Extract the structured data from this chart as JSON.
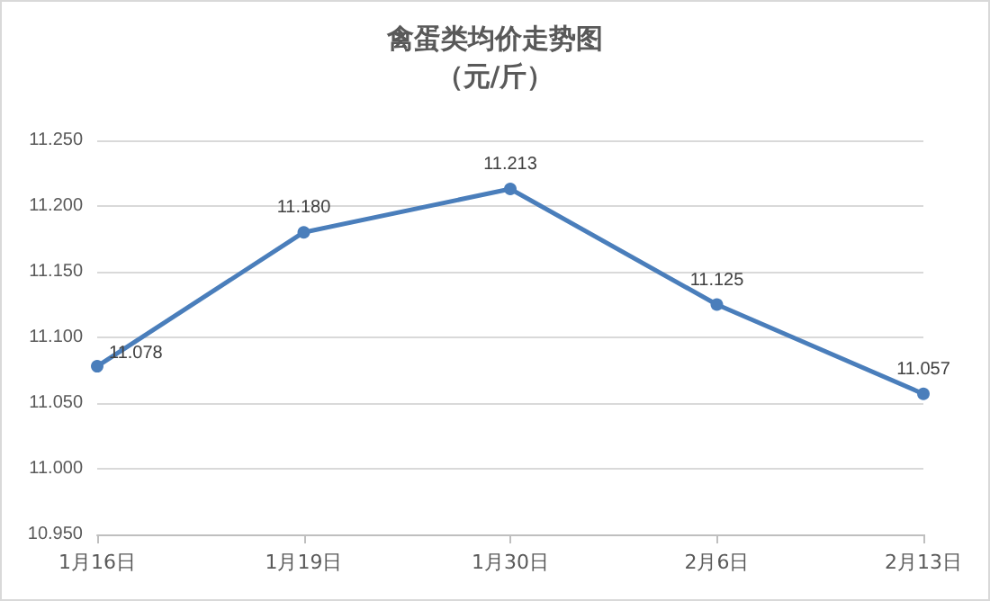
{
  "chart_data": {
    "type": "line",
    "title": "禽蛋类均价走势图",
    "subtitle": "（元/斤）",
    "categories": [
      "1月16日",
      "1月19日",
      "1月30日",
      "2月6日",
      "2月13日"
    ],
    "series": [
      {
        "color": "#4a7ebb",
        "values": [
          11.078,
          11.18,
          11.213,
          11.125,
          11.057
        ],
        "value_labels": [
          "11.078",
          "11.180",
          "11.213",
          "11.125",
          "11.057"
        ]
      }
    ],
    "ylim": [
      10.95,
      11.25
    ],
    "yticks": [
      {
        "value": 10.95,
        "label": "10.950"
      },
      {
        "value": 11.0,
        "label": "11.000"
      },
      {
        "value": 11.05,
        "label": "11.050"
      },
      {
        "value": 11.1,
        "label": "11.100"
      },
      {
        "value": 11.15,
        "label": "11.150"
      },
      {
        "value": 11.2,
        "label": "11.200"
      },
      {
        "value": 11.25,
        "label": "11.250"
      }
    ],
    "grid": "y",
    "marker": "circle",
    "line_style": "solid"
  }
}
